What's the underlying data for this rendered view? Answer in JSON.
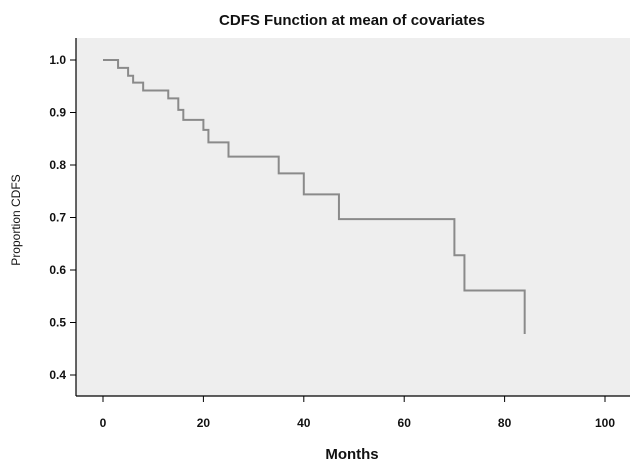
{
  "chart_data": {
    "type": "line",
    "title": "CDFS Function at mean of covariates",
    "xlabel": "Months",
    "ylabel": "Proportion CDFS",
    "xlim": [
      0,
      100
    ],
    "ylim": [
      0.4,
      1.0
    ],
    "xticks": [
      "0",
      "20",
      "40",
      "60",
      "80",
      "100"
    ],
    "yticks": [
      "0.4",
      "0.5",
      "0.6",
      "0.7",
      "0.8",
      "0.9",
      "1.0"
    ],
    "grid": false,
    "legend": "none",
    "step": true,
    "series": [
      {
        "x": [
          0,
          3,
          5,
          6,
          8,
          13,
          15,
          16,
          20,
          21,
          25,
          35,
          40,
          47,
          70,
          72,
          84
        ],
        "y": [
          1.0,
          0.985,
          0.97,
          0.957,
          0.942,
          0.927,
          0.905,
          0.886,
          0.867,
          0.843,
          0.816,
          0.784,
          0.744,
          0.697,
          0.628,
          0.561,
          0.478
        ],
        "color": "#8a8a8a"
      }
    ],
    "colors": {
      "plot_background": "#eeeeee",
      "axis": "#000000"
    }
  }
}
